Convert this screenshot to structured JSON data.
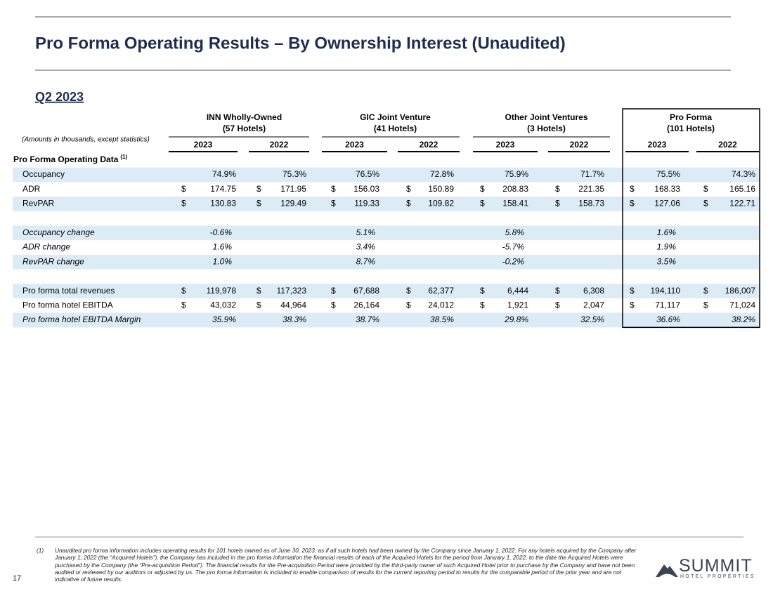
{
  "header": {
    "title": "Pro Forma Operating Results – By Ownership Interest (Unaudited)",
    "period": "Q2 2023"
  },
  "table": {
    "units_note": "(Amounts in thousands, except statistics)",
    "groups": [
      {
        "name": "INN Wholly-Owned",
        "detail": "(57 Hotels)",
        "years": [
          "2023",
          "2022"
        ]
      },
      {
        "name": "GIC Joint Venture",
        "detail": "(41 Hotels)",
        "years": [
          "2023",
          "2022"
        ]
      },
      {
        "name": "Other Joint Ventures",
        "detail": "(3 Hotels)",
        "years": [
          "2023",
          "2022"
        ]
      },
      {
        "name": "Pro Forma",
        "detail": "(101 Hotels)",
        "years": [
          "2023",
          "2022"
        ]
      }
    ],
    "sections": [
      {
        "title": "Pro Forma Operating Data",
        "footnote_marker": "(1)",
        "rows": [
          {
            "label": "Occupancy",
            "italic": false,
            "values": [
              "74.9%",
              "75.3%",
              "76.5%",
              "72.8%",
              "75.9%",
              "71.7%",
              "75.5%",
              "74.3%"
            ]
          },
          {
            "label": "ADR",
            "italic": false,
            "currency_symbol": "$",
            "values": [
              "174.75",
              "171.95",
              "156.03",
              "150.89",
              "208.83",
              "221.35",
              "168.33",
              "165.16"
            ]
          },
          {
            "label": "RevPAR",
            "italic": false,
            "currency_symbol": "$",
            "values": [
              "130.83",
              "129.49",
              "119.33",
              "109.82",
              "158.41",
              "158.73",
              "127.06",
              "122.71"
            ]
          }
        ]
      },
      {
        "rows": [
          {
            "label": "Occupancy change",
            "italic": true,
            "values": [
              "-0.6%",
              "5.1%",
              "5.8%",
              "1.6%"
            ]
          },
          {
            "label": "ADR change",
            "italic": true,
            "values": [
              "1.6%",
              "3.4%",
              "-5.7%",
              "1.9%"
            ]
          },
          {
            "label": "RevPAR change",
            "italic": true,
            "values": [
              "1.0%",
              "8.7%",
              "-0.2%",
              "3.5%"
            ]
          }
        ]
      },
      {
        "rows": [
          {
            "label": "Pro forma total revenues",
            "italic": false,
            "currency_symbol": "$",
            "values": [
              "119,978",
              "117,323",
              "67,688",
              "62,377",
              "6,444",
              "6,308",
              "194,110",
              "186,007"
            ]
          },
          {
            "label": "Pro forma hotel EBITDA",
            "italic": false,
            "currency_symbol": "$",
            "values": [
              "43,032",
              "44,964",
              "26,164",
              "24,012",
              "1,921",
              "2,047",
              "71,117",
              "71,024"
            ]
          },
          {
            "label": "Pro forma hotel EBITDA Margin",
            "italic": true,
            "values": [
              "35.9%",
              "38.3%",
              "38.7%",
              "38.5%",
              "29.8%",
              "32.5%",
              "36.6%",
              "38.2%"
            ]
          }
        ]
      }
    ]
  },
  "footer": {
    "footnote_marker": "(1)",
    "footnote": "Unaudited pro forma information includes operating results for 101 hotels owned as of June 30, 2023, as if all such hotels had been owned by the Company since January 1, 2022. For any hotels acquired by the Company after January 1, 2022 (the “Acquired Hotels”), the Company has included in the pro forma information the financial results of each of the Acquired Hotels for the period from January 1, 2022, to the date the Acquired Hotels were purchased by the Company (the “Pre-acquisition Period”). The financial results for the Pre-acquisition Period were provided by the third-party owner of such Acquired Hotel prior to purchase by the Company and have not been audited or reviewed by our auditors or adjusted by us. The pro forma information is included to enable comparison of results for the current reporting period to results for the comparable period of the prior year and are not indicative of future results.",
    "page_number": "17",
    "logo_name": "SUMMIT",
    "logo_tagline": "HOTEL PROPERTIES"
  }
}
